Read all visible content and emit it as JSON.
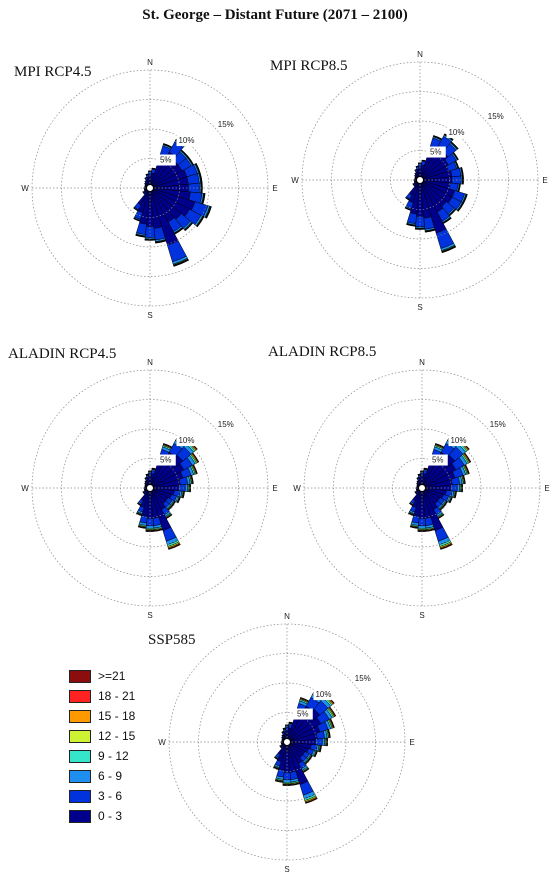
{
  "title": "St. George – Distant Future (2071 – 2100)",
  "colors": {
    "bins": [
      "#00008b",
      "#0033dd",
      "#1e8ff0",
      "#33e6cc",
      "#ccf233",
      "#ff9900",
      "#ff2222",
      "#8b0d0d"
    ],
    "ring": "#888888"
  },
  "legend": {
    "items": [
      {
        "label": ">=21",
        "color": "#8b0d0d"
      },
      {
        "label": "18 - 21",
        "color": "#ff2222"
      },
      {
        "label": "15 - 18",
        "color": "#ff9900"
      },
      {
        "label": "12 - 15",
        "color": "#ccf233"
      },
      {
        "label": "9 - 12",
        "color": "#33e6cc"
      },
      {
        "label": "6 - 9",
        "color": "#1e8ff0"
      },
      {
        "label": "3 - 6",
        "color": "#0033dd"
      },
      {
        "label": "0 - 3",
        "color": "#00008b"
      }
    ]
  },
  "chart_data": [
    {
      "type": "windrose",
      "label": "MPI RCP4.5",
      "rings": [
        "5%",
        "10%",
        "15%"
      ],
      "directions": [
        "N",
        "E",
        "S",
        "W"
      ],
      "sectors": [
        2.5,
        3,
        7.5,
        9,
        8,
        8,
        8.5,
        8.5,
        8.5,
        9,
        10.5,
        10,
        9,
        8.5,
        13.5,
        9,
        8.5,
        8,
        5.5,
        4,
        1,
        1,
        0.6,
        0.6,
        0.6,
        0.5,
        0.5,
        0.6,
        0.8,
        1,
        1.5,
        2
      ],
      "bin_fractions": [
        0.72,
        0.22,
        0.03,
        0.01,
        0.005,
        0.005,
        0.005,
        0.005
      ]
    },
    {
      "type": "windrose",
      "label": "MPI RCP8.5",
      "rings": [
        "5%",
        "10%",
        "15%"
      ],
      "directions": [
        "N",
        "E",
        "S",
        "W"
      ],
      "sectors": [
        2.5,
        3,
        7.5,
        8.5,
        8,
        7,
        6.5,
        7,
        7,
        6.5,
        8,
        8,
        7.5,
        8,
        12.5,
        8.5,
        8,
        7.5,
        5,
        3.5,
        1,
        1,
        0.6,
        0.6,
        0.6,
        0.5,
        0.5,
        0.6,
        0.8,
        1,
        1.5,
        2
      ],
      "bin_fractions": [
        0.72,
        0.22,
        0.03,
        0.01,
        0.005,
        0.005,
        0.005,
        0.005
      ]
    },
    {
      "type": "windrose",
      "label": "ALADIN RCP4.5",
      "rings": [
        "5%",
        "10%",
        "15%"
      ],
      "directions": [
        "N",
        "E",
        "S",
        "W"
      ],
      "sectors": [
        2.5,
        3,
        7.5,
        9.5,
        10,
        9,
        8,
        7,
        6.5,
        5.5,
        5,
        4.5,
        4.5,
        5.5,
        10.5,
        7,
        7,
        6.5,
        4.5,
        3,
        1,
        1,
        0.6,
        0.6,
        0.6,
        0.5,
        0.5,
        0.6,
        0.8,
        1,
        1.5,
        2
      ],
      "bin_fractions": [
        0.68,
        0.18,
        0.06,
        0.03,
        0.02,
        0.015,
        0.01,
        0.005
      ]
    },
    {
      "type": "windrose",
      "label": "ALADIN RCP8.5",
      "rings": [
        "5%",
        "10%",
        "15%"
      ],
      "directions": [
        "N",
        "E",
        "S",
        "W"
      ],
      "sectors": [
        2.5,
        3,
        7.5,
        9.5,
        10,
        9,
        8,
        7,
        6.5,
        5.5,
        5,
        4.5,
        4.5,
        5.5,
        10.5,
        7,
        7,
        6.5,
        4.5,
        3,
        1,
        1,
        0.6,
        0.6,
        0.6,
        0.5,
        0.5,
        0.6,
        0.8,
        1,
        1.5,
        2
      ],
      "bin_fractions": [
        0.68,
        0.18,
        0.06,
        0.03,
        0.02,
        0.015,
        0.01,
        0.005
      ]
    },
    {
      "type": "windrose",
      "label": "SSP585",
      "rings": [
        "5%",
        "10%",
        "15%"
      ],
      "directions": [
        "N",
        "E",
        "S",
        "W"
      ],
      "sectors": [
        2.5,
        3,
        7.5,
        9.5,
        10,
        9,
        8,
        7,
        6.5,
        5.5,
        5,
        4.5,
        4.5,
        5.5,
        10.5,
        7,
        7,
        6.5,
        4.5,
        3,
        1,
        1,
        0.6,
        0.6,
        0.6,
        0.5,
        0.5,
        0.6,
        0.8,
        1,
        1.5,
        2
      ],
      "bin_fractions": [
        0.68,
        0.18,
        0.06,
        0.03,
        0.02,
        0.015,
        0.01,
        0.005
      ]
    }
  ]
}
